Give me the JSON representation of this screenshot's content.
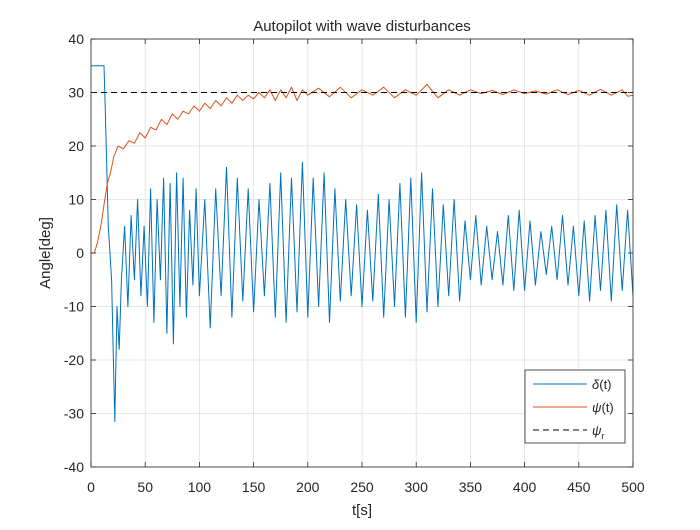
{
  "chart_data": {
    "type": "line",
    "title": "Autopilot with wave disturbances",
    "xlabel": "t[s]",
    "ylabel": "Angle[deg]",
    "xlim": [
      0,
      500
    ],
    "ylim": [
      -40,
      40
    ],
    "xticks": [
      0,
      50,
      100,
      150,
      200,
      250,
      300,
      350,
      400,
      450,
      500
    ],
    "yticks": [
      -40,
      -30,
      -20,
      -10,
      0,
      10,
      20,
      30,
      40
    ],
    "xtick_labels": [
      "0",
      "50",
      "100",
      "150",
      "200",
      "250",
      "300",
      "350",
      "400",
      "450",
      "500"
    ],
    "ytick_labels": [
      "-40",
      "-30",
      "-20",
      "-10",
      "0",
      "10",
      "20",
      "30",
      "40"
    ],
    "grid": true,
    "legend_position": "bottom-right",
    "series": [
      {
        "name": "δ(t)",
        "legend_main": "δ",
        "legend_sub": "",
        "legend_tail": "(t)",
        "color": "#0072BD",
        "style": "solid",
        "x": [
          0,
          12,
          13,
          16,
          19,
          22,
          24,
          26,
          28,
          31,
          34,
          37,
          40,
          43,
          46,
          49,
          52,
          55,
          58,
          61,
          64,
          67,
          70,
          73,
          76,
          79,
          82,
          85,
          88,
          91,
          94,
          97,
          100,
          105,
          110,
          115,
          120,
          125,
          130,
          135,
          140,
          145,
          150,
          155,
          160,
          165,
          170,
          175,
          180,
          185,
          190,
          195,
          200,
          205,
          210,
          215,
          220,
          225,
          230,
          235,
          240,
          245,
          250,
          255,
          260,
          265,
          270,
          275,
          280,
          285,
          290,
          295,
          300,
          305,
          310,
          315,
          320,
          325,
          330,
          335,
          340,
          345,
          350,
          355,
          360,
          365,
          370,
          375,
          380,
          385,
          390,
          395,
          400,
          405,
          410,
          415,
          420,
          425,
          430,
          435,
          440,
          445,
          450,
          455,
          460,
          465,
          470,
          475,
          480,
          485,
          490,
          495,
          500
        ],
        "values": [
          35,
          35,
          28,
          5,
          -5,
          -31.5,
          -10,
          -18,
          -5,
          5,
          -10,
          7,
          -5,
          10,
          -8,
          5,
          -10,
          12,
          -13,
          10,
          -5,
          14,
          -15,
          13,
          -17,
          15,
          -10,
          14,
          -12,
          8,
          -6,
          12,
          -8,
          10,
          -14,
          12,
          -8,
          16,
          -12,
          14,
          -9,
          12,
          -11,
          10,
          -8,
          13,
          -12,
          15,
          -13,
          14,
          -11,
          17,
          -12,
          14,
          -10,
          15,
          -13,
          12,
          -9,
          10,
          -8,
          9,
          -10,
          8,
          -9,
          11,
          -12,
          10,
          -10,
          13,
          -12,
          14,
          -13,
          15,
          -11,
          12,
          -10,
          9,
          -8,
          10,
          -9,
          6,
          -5,
          7,
          -6,
          5,
          -5,
          4,
          -6,
          7,
          -7,
          8,
          -7,
          6,
          -6,
          4,
          -4,
          5,
          -5,
          7,
          -6,
          5,
          -8,
          6,
          -9,
          7,
          -7,
          8,
          -9,
          9,
          -7,
          8,
          -8
        ]
      },
      {
        "name": "ψ(t)",
        "legend_main": "ψ",
        "legend_sub": "",
        "legend_tail": "(t)",
        "color": "#D95319",
        "style": "solid",
        "x": [
          0,
          3,
          6,
          9,
          12,
          15,
          18,
          21,
          25,
          30,
          35,
          40,
          45,
          50,
          55,
          60,
          65,
          70,
          75,
          80,
          85,
          90,
          95,
          100,
          105,
          110,
          115,
          120,
          125,
          130,
          135,
          140,
          145,
          150,
          155,
          160,
          165,
          170,
          175,
          180,
          185,
          190,
          195,
          200,
          210,
          220,
          230,
          240,
          250,
          260,
          270,
          280,
          290,
          300,
          310,
          320,
          330,
          340,
          350,
          360,
          370,
          380,
          390,
          400,
          410,
          420,
          430,
          440,
          450,
          460,
          470,
          480,
          490,
          495,
          500
        ],
        "values": [
          0,
          0,
          2,
          5,
          9,
          13,
          15,
          18,
          20,
          19.5,
          21,
          20.5,
          22.5,
          21.5,
          23.5,
          23,
          25,
          24,
          26,
          25,
          26.5,
          26,
          27.5,
          26.5,
          28,
          27,
          28.5,
          27.5,
          29,
          28,
          29.5,
          28.5,
          29.5,
          28.8,
          30,
          29,
          30.5,
          28.5,
          30.5,
          29,
          31,
          28.5,
          30.5,
          29.5,
          30.8,
          29.2,
          31,
          29,
          30.5,
          29.5,
          31,
          29,
          30.5,
          29.5,
          31.5,
          29,
          30.5,
          29.5,
          30.5,
          29.8,
          30.4,
          29.6,
          30.5,
          29.8,
          30.3,
          29.7,
          30.5,
          29.6,
          30.4,
          29.5,
          30.6,
          29.5,
          30.5,
          29.3,
          29.5
        ]
      },
      {
        "name": "ψr",
        "legend_main": "ψ",
        "legend_sub": "r",
        "legend_tail": "",
        "color": "#000000",
        "style": "dashed",
        "x": [
          0,
          500
        ],
        "values": [
          30,
          30
        ]
      }
    ]
  }
}
